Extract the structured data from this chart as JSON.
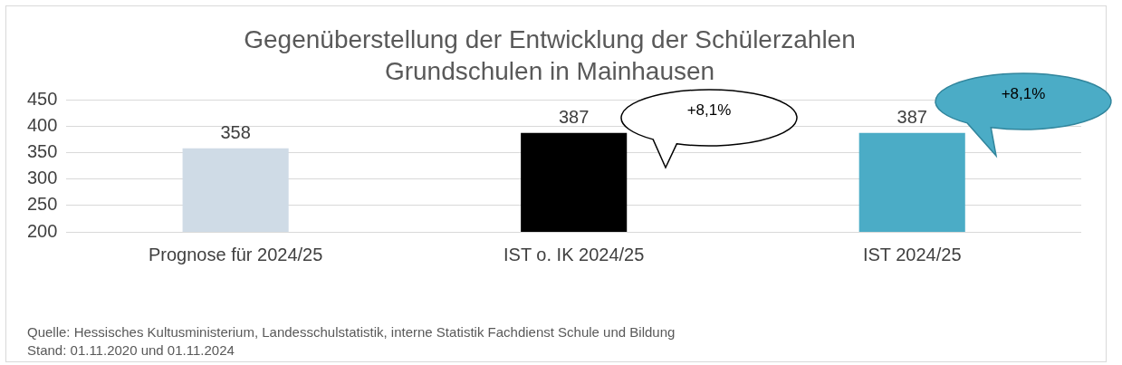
{
  "chart_data": {
    "type": "bar",
    "title": [
      "Gegenüberstellung der Entwicklung der Schülerzahlen",
      "Grundschulen in Mainhausen"
    ],
    "categories": [
      "Prognose für 2024/25",
      "IST o. IK 2024/25",
      "IST 2024/25"
    ],
    "values": [
      358,
      387,
      387
    ],
    "colors": [
      "#cfdbe6",
      "#000000",
      "#4bacc6"
    ],
    "ylim": [
      200,
      450
    ],
    "yticks": [
      200,
      250,
      300,
      350,
      400,
      450
    ],
    "grid": "y",
    "data_labels": true,
    "annotations": [
      "+8,1%",
      "+8,1%",
      "Quelle: Hessisches Kultusministerium, Landesschulstatistik, interne Statistik Fachdienst Schule und Bildung",
      "Stand: 01.11.2020 und 01.11.2024"
    ]
  }
}
